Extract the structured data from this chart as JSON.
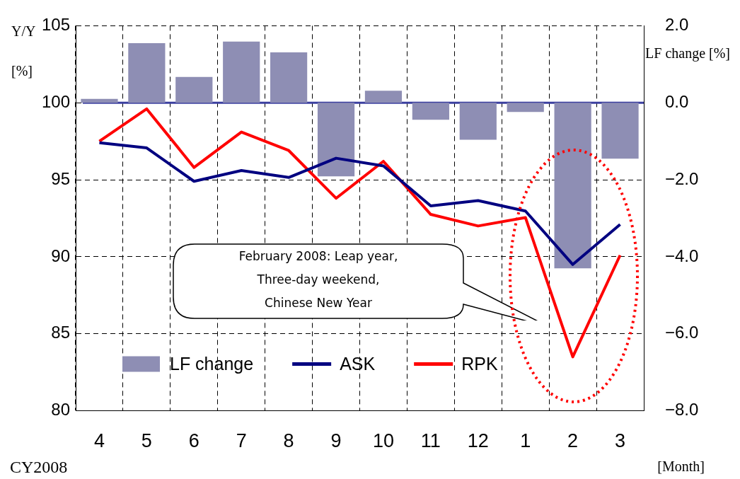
{
  "chart_data": {
    "type": "line",
    "categories": [
      "4",
      "5",
      "6",
      "7",
      "8",
      "9",
      "10",
      "11",
      "12",
      "1",
      "2",
      "3"
    ],
    "series": [
      {
        "name": "LF change",
        "type": "bar",
        "axis": "y2",
        "color": "#8e8eb4",
        "values": [
          0.1,
          1.55,
          0.67,
          1.59,
          1.31,
          -1.91,
          0.31,
          -0.44,
          -0.96,
          -0.24,
          -4.3,
          -1.45
        ]
      },
      {
        "name": "ASK",
        "color": "#000080",
        "values": [
          97.4,
          97.07,
          94.9,
          95.6,
          95.15,
          96.4,
          95.9,
          93.3,
          93.65,
          92.97,
          89.5,
          92.1
        ]
      },
      {
        "name": "RPK",
        "color": "#ff0000",
        "values": [
          97.5,
          99.6,
          95.8,
          98.1,
          96.9,
          93.8,
          96.2,
          92.75,
          92.0,
          92.55,
          83.5,
          90.1
        ]
      }
    ],
    "ylim": [
      80,
      105
    ],
    "yticks": [
      80,
      85,
      90,
      95,
      100,
      105
    ],
    "y2lim": [
      -8,
      2
    ],
    "y2ticks": [
      {
        "value": -8,
        "label": "−8.0"
      },
      {
        "value": -6,
        "label": "−6.0"
      },
      {
        "value": -4,
        "label": "−4.0"
      },
      {
        "value": -2,
        "label": "−2.0"
      },
      {
        "value": 0,
        "label": "0.0"
      },
      {
        "value": 2,
        "label": "2.0"
      }
    ],
    "ylabel": "Y/Y [%]",
    "y2label": "LF change [%]",
    "xlabel": "[Month]",
    "annotations": [
      "February 2008: Leap year,\nThree-day weekend,\nChinese New Year",
      "CY2008"
    ],
    "ref_lines": [
      {
        "axis": "y2",
        "value": 0,
        "color": "#3b3fa0"
      }
    ],
    "grid": true,
    "legend": "bottom",
    "marker": "none",
    "line_style": "solid"
  }
}
